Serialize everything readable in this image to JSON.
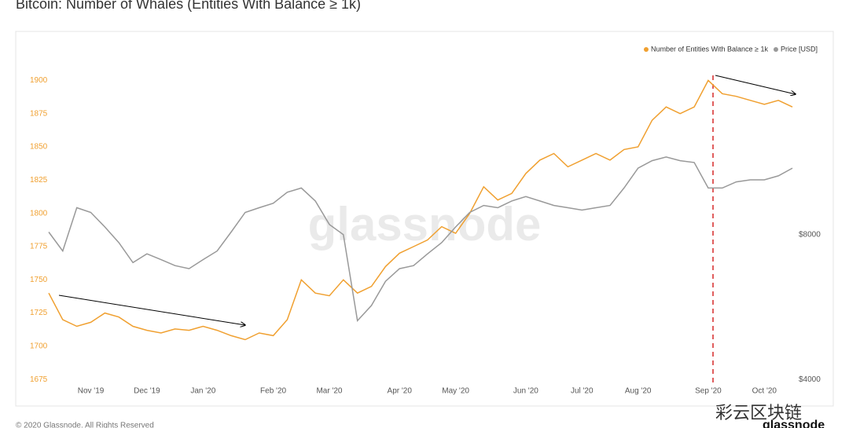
{
  "chart_data": {
    "type": "line",
    "title": "Bitcoin: Number of Whales (Entities With Balance ≥ 1k)",
    "watermark": "glassnode",
    "footer": "© 2020 Glassnode. All Rights Reserved",
    "brand": "glassnode",
    "overlay_text": "彩云区块链",
    "categories": [
      null,
      null,
      null,
      "Nov '19",
      null,
      null,
      null,
      "Dec '19",
      null,
      null,
      null,
      "Jan '20",
      null,
      null,
      null,
      null,
      "Feb '20",
      null,
      null,
      null,
      "Mar '20",
      null,
      null,
      null,
      null,
      "Apr '20",
      null,
      null,
      null,
      "May '20",
      null,
      null,
      null,
      null,
      "Jun '20",
      null,
      null,
      null,
      "Jul '20",
      null,
      null,
      null,
      "Aug '20",
      null,
      null,
      null,
      null,
      "Sep '20",
      null,
      null,
      null,
      "Oct '20",
      null,
      null
    ],
    "series": [
      {
        "name": "Number of Entities With Balance ≥ 1k",
        "color": "#f0a030",
        "axis": "y",
        "values": [
          1740,
          1720,
          1715,
          1718,
          1725,
          1722,
          1715,
          1712,
          1710,
          1713,
          1712,
          1715,
          1712,
          1708,
          1705,
          1710,
          1708,
          1720,
          1750,
          1740,
          1738,
          1750,
          1740,
          1745,
          1760,
          1770,
          1775,
          1780,
          1790,
          1785,
          1800,
          1820,
          1810,
          1815,
          1830,
          1840,
          1845,
          1835,
          1840,
          1845,
          1840,
          1848,
          1850,
          1870,
          1880,
          1875,
          1880,
          1900,
          1890,
          1888,
          1885,
          1882,
          1885,
          1880
        ]
      },
      {
        "name": "Price [USD]",
        "color": "#999999",
        "axis": "y2",
        "values": [
          8100,
          7400,
          9100,
          8900,
          8300,
          7700,
          7000,
          7300,
          7100,
          6900,
          6800,
          7100,
          7400,
          8100,
          8900,
          9100,
          9300,
          9800,
          10000,
          9400,
          8400,
          8000,
          5300,
          5700,
          6400,
          6800,
          6900,
          7300,
          7700,
          8300,
          8900,
          9200,
          9100,
          9400,
          9600,
          9400,
          9200,
          9100,
          9000,
          9100,
          9200,
          10000,
          11000,
          11400,
          11600,
          11400,
          11300,
          10000,
          10000,
          10300,
          10400,
          10400,
          10600,
          11000
        ]
      }
    ],
    "ylim": [
      1671,
      1928
    ],
    "yticks": [
      1675,
      1700,
      1725,
      1750,
      1775,
      1800,
      1825,
      1850,
      1875,
      1900
    ],
    "y2lim": [
      3900,
      20000
    ],
    "y2scale": "log",
    "y2ticks": [
      {
        "value": 4000,
        "label": "$4000"
      },
      {
        "value": 8000,
        "label": "$8000"
      }
    ],
    "grid": false,
    "legend": "top-right"
  }
}
